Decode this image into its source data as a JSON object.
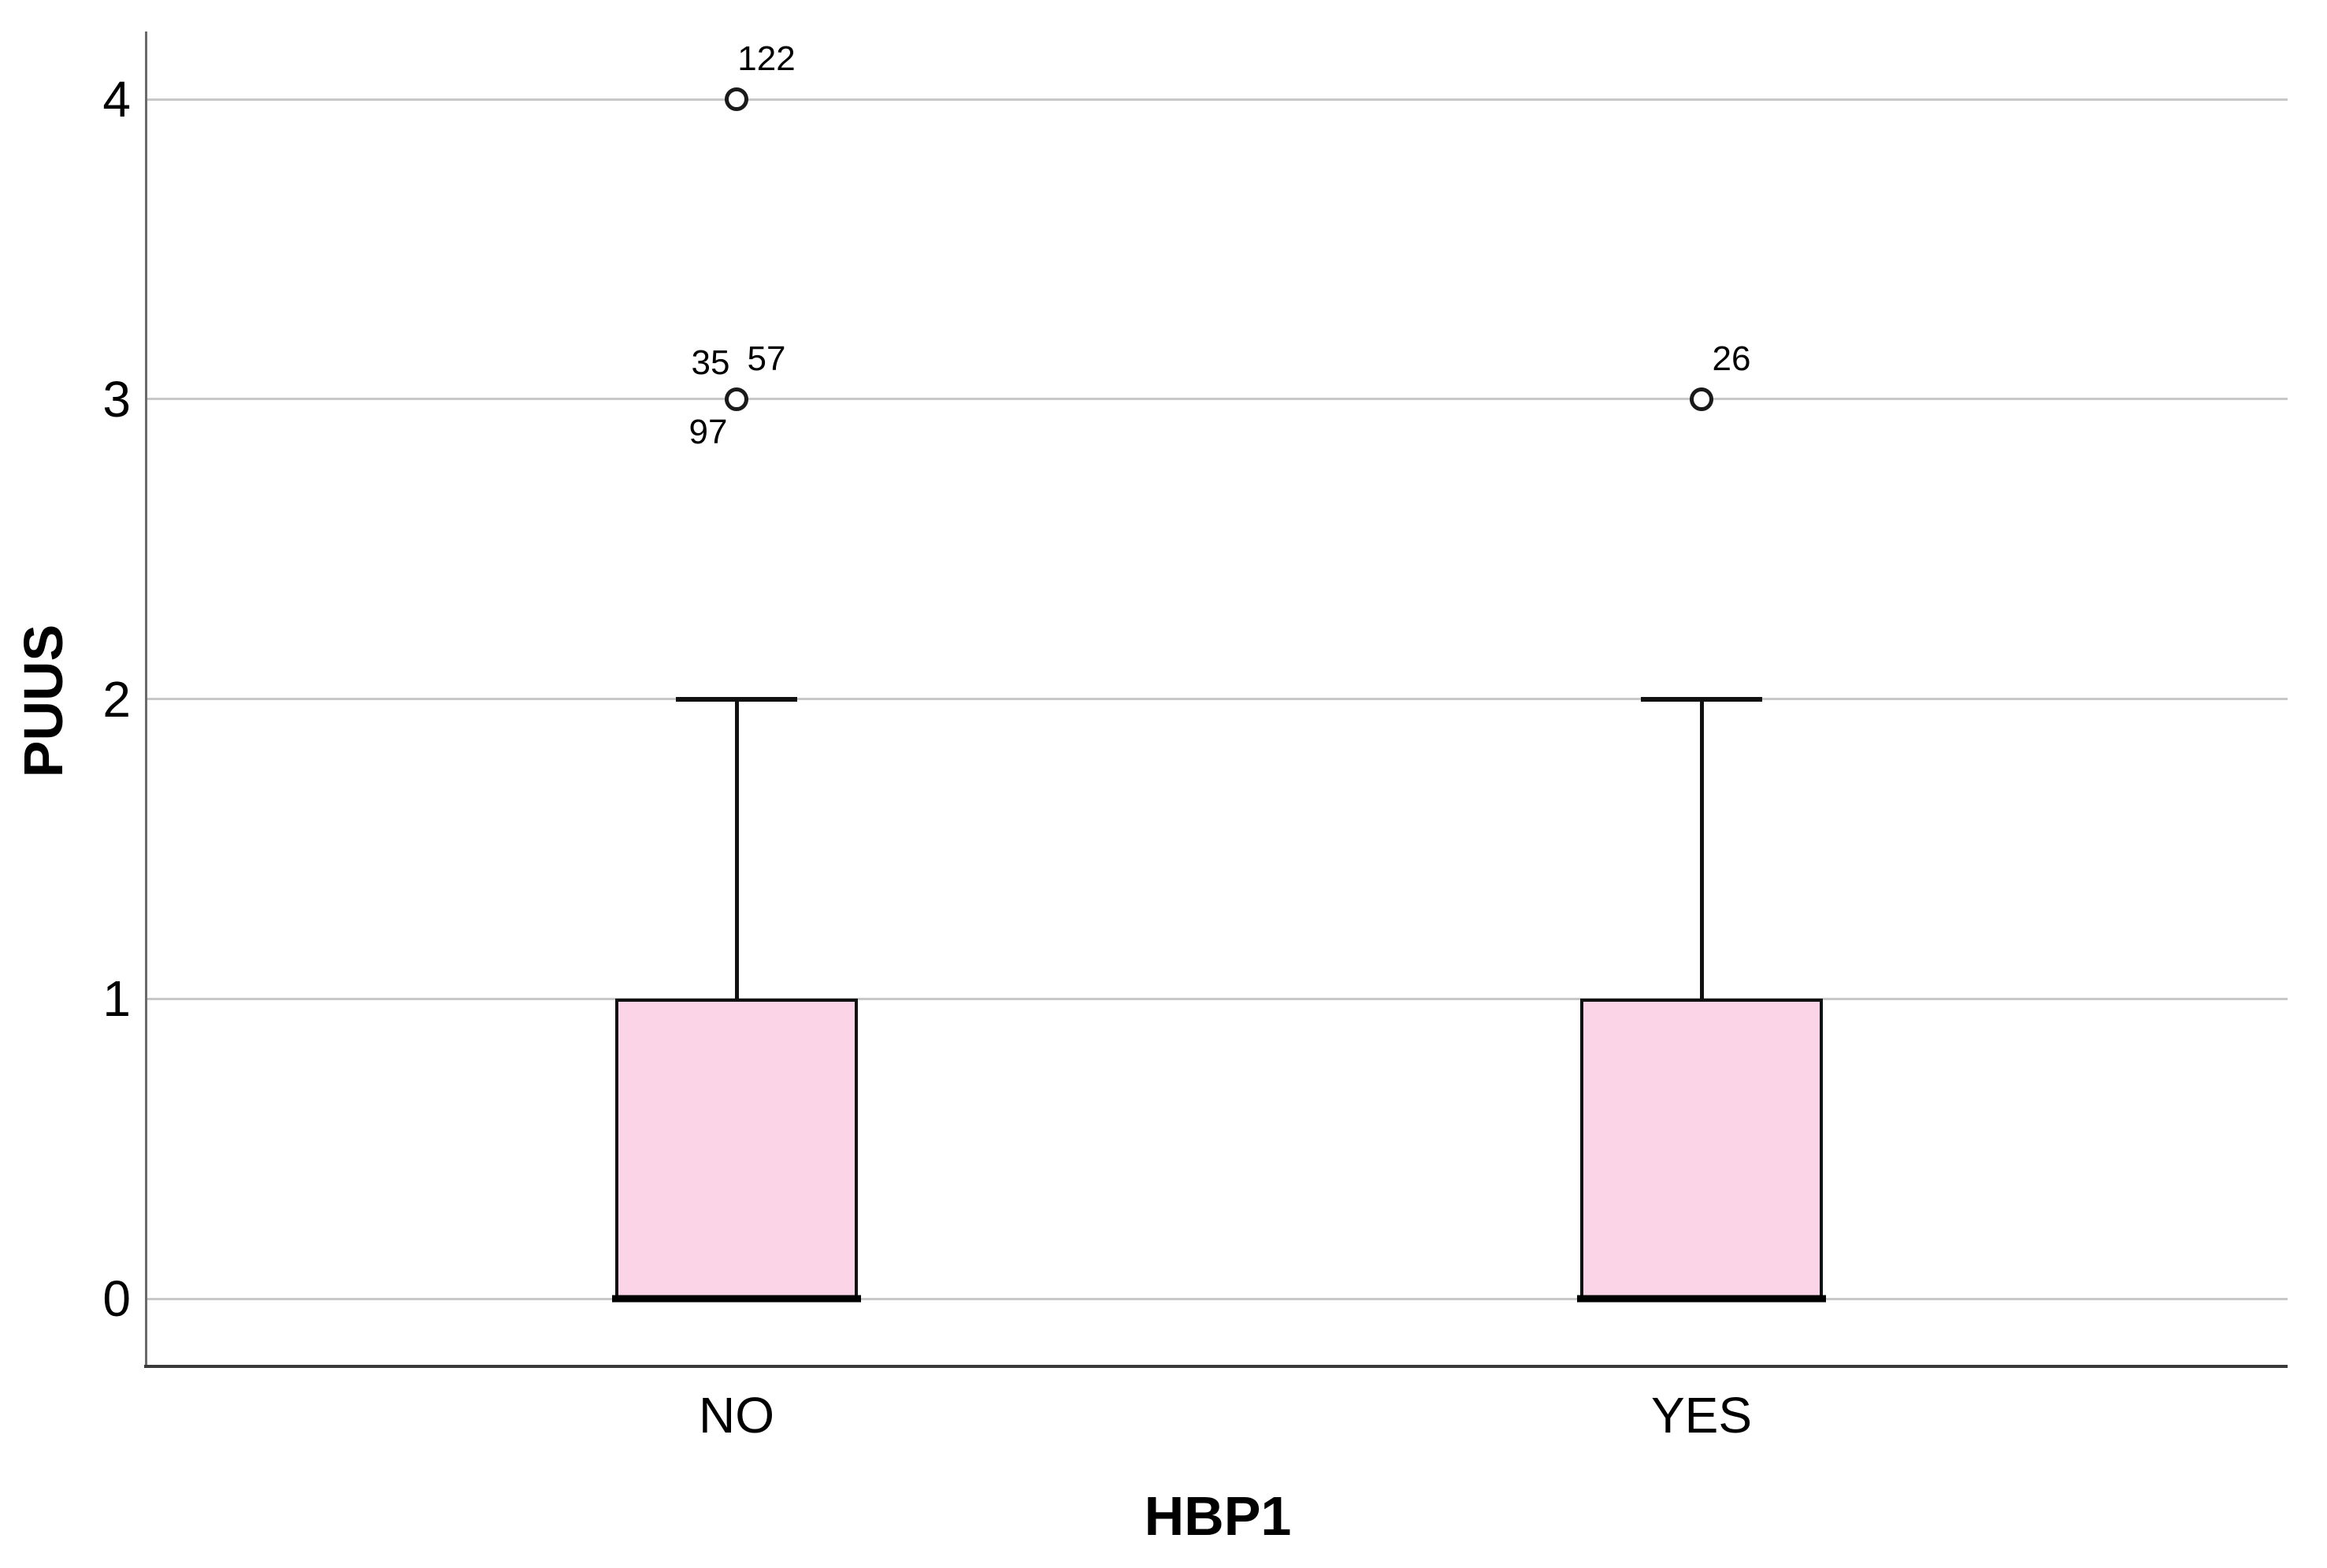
{
  "chart_data": {
    "type": "boxplot",
    "title": "",
    "xlabel": "HBP1",
    "ylabel": "PUUS",
    "ylim": [
      0,
      4
    ],
    "yticks": [
      0,
      1,
      2,
      3,
      4
    ],
    "categories": [
      "NO",
      "YES"
    ],
    "grid": "horizontal",
    "legend": false,
    "series": [
      {
        "category": "NO",
        "q1": 0,
        "median": 0,
        "q3": 1,
        "whisker_low": 0,
        "whisker_high": 2,
        "outliers": [
          {
            "value": 4,
            "label": "122",
            "placement": "above-right"
          },
          {
            "value": 3,
            "label": "35",
            "placement": "above-left"
          },
          {
            "value": 3,
            "label": "57",
            "placement": "above-right"
          },
          {
            "value": 3,
            "label": "97",
            "placement": "below-left"
          }
        ]
      },
      {
        "category": "YES",
        "q1": 0,
        "median": 0,
        "q3": 1,
        "whisker_low": 0,
        "whisker_high": 2,
        "outliers": [
          {
            "value": 3,
            "label": "26",
            "placement": "above-right"
          }
        ]
      }
    ],
    "colors": {
      "box_fill": "#fbd4e8",
      "box_border": "#111111",
      "median": "#000000",
      "whisker": "#111111",
      "outlier_ring": "#1a1a1a",
      "gridline": "#c8c8c8",
      "y_axis_line": "#6a6a6a",
      "x_axis_line": "#3a3a3a",
      "text": "#000000"
    }
  }
}
